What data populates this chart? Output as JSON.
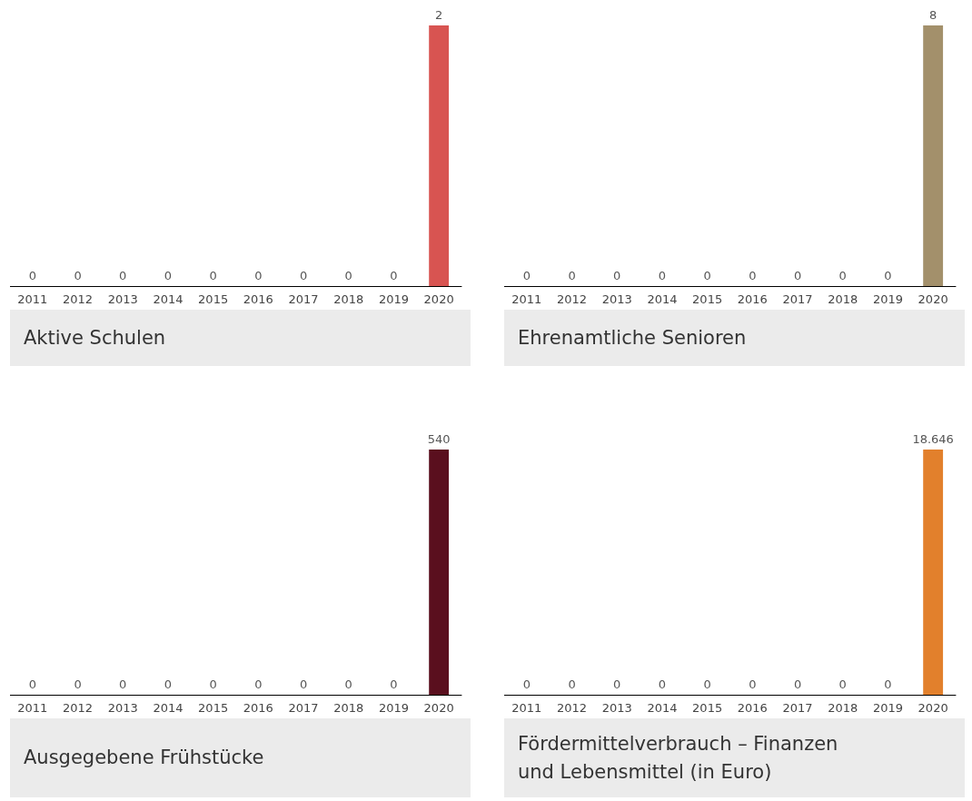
{
  "chart_data": [
    {
      "type": "bar",
      "title": "Aktive Schulen",
      "categories": [
        "2011",
        "2012",
        "2013",
        "2014",
        "2015",
        "2016",
        "2017",
        "2018",
        "2019",
        "2020"
      ],
      "values": [
        0,
        0,
        0,
        0,
        0,
        0,
        0,
        0,
        0,
        2
      ],
      "color": "#d85451",
      "data_labels": true
    },
    {
      "type": "bar",
      "title": "Ehrenamtliche Senioren",
      "categories": [
        "2011",
        "2012",
        "2013",
        "2014",
        "2015",
        "2016",
        "2017",
        "2018",
        "2019",
        "2020"
      ],
      "values": [
        0,
        0,
        0,
        0,
        0,
        0,
        0,
        0,
        0,
        8
      ],
      "color": "#a3906b",
      "data_labels": true
    },
    {
      "type": "bar",
      "title": "Ausgegebene Frühstücke",
      "categories": [
        "2011",
        "2012",
        "2013",
        "2014",
        "2015",
        "2016",
        "2017",
        "2018",
        "2019",
        "2020"
      ],
      "values": [
        0,
        0,
        0,
        0,
        0,
        0,
        0,
        0,
        0,
        540
      ],
      "color": "#5a0f1e",
      "data_labels": true
    },
    {
      "type": "bar",
      "title": "Fördermittelverbrauch – Finanzen\nund Lebensmittel (in Euro)",
      "categories": [
        "2011",
        "2012",
        "2013",
        "2014",
        "2015",
        "2016",
        "2017",
        "2018",
        "2019",
        "2020"
      ],
      "values": [
        0,
        0,
        0,
        0,
        0,
        0,
        0,
        0,
        0,
        18646
      ],
      "color": "#e2802c",
      "value_labels": [
        "0",
        "0",
        "0",
        "0",
        "0",
        "0",
        "0",
        "0",
        "0",
        "18.646"
      ]
    }
  ]
}
